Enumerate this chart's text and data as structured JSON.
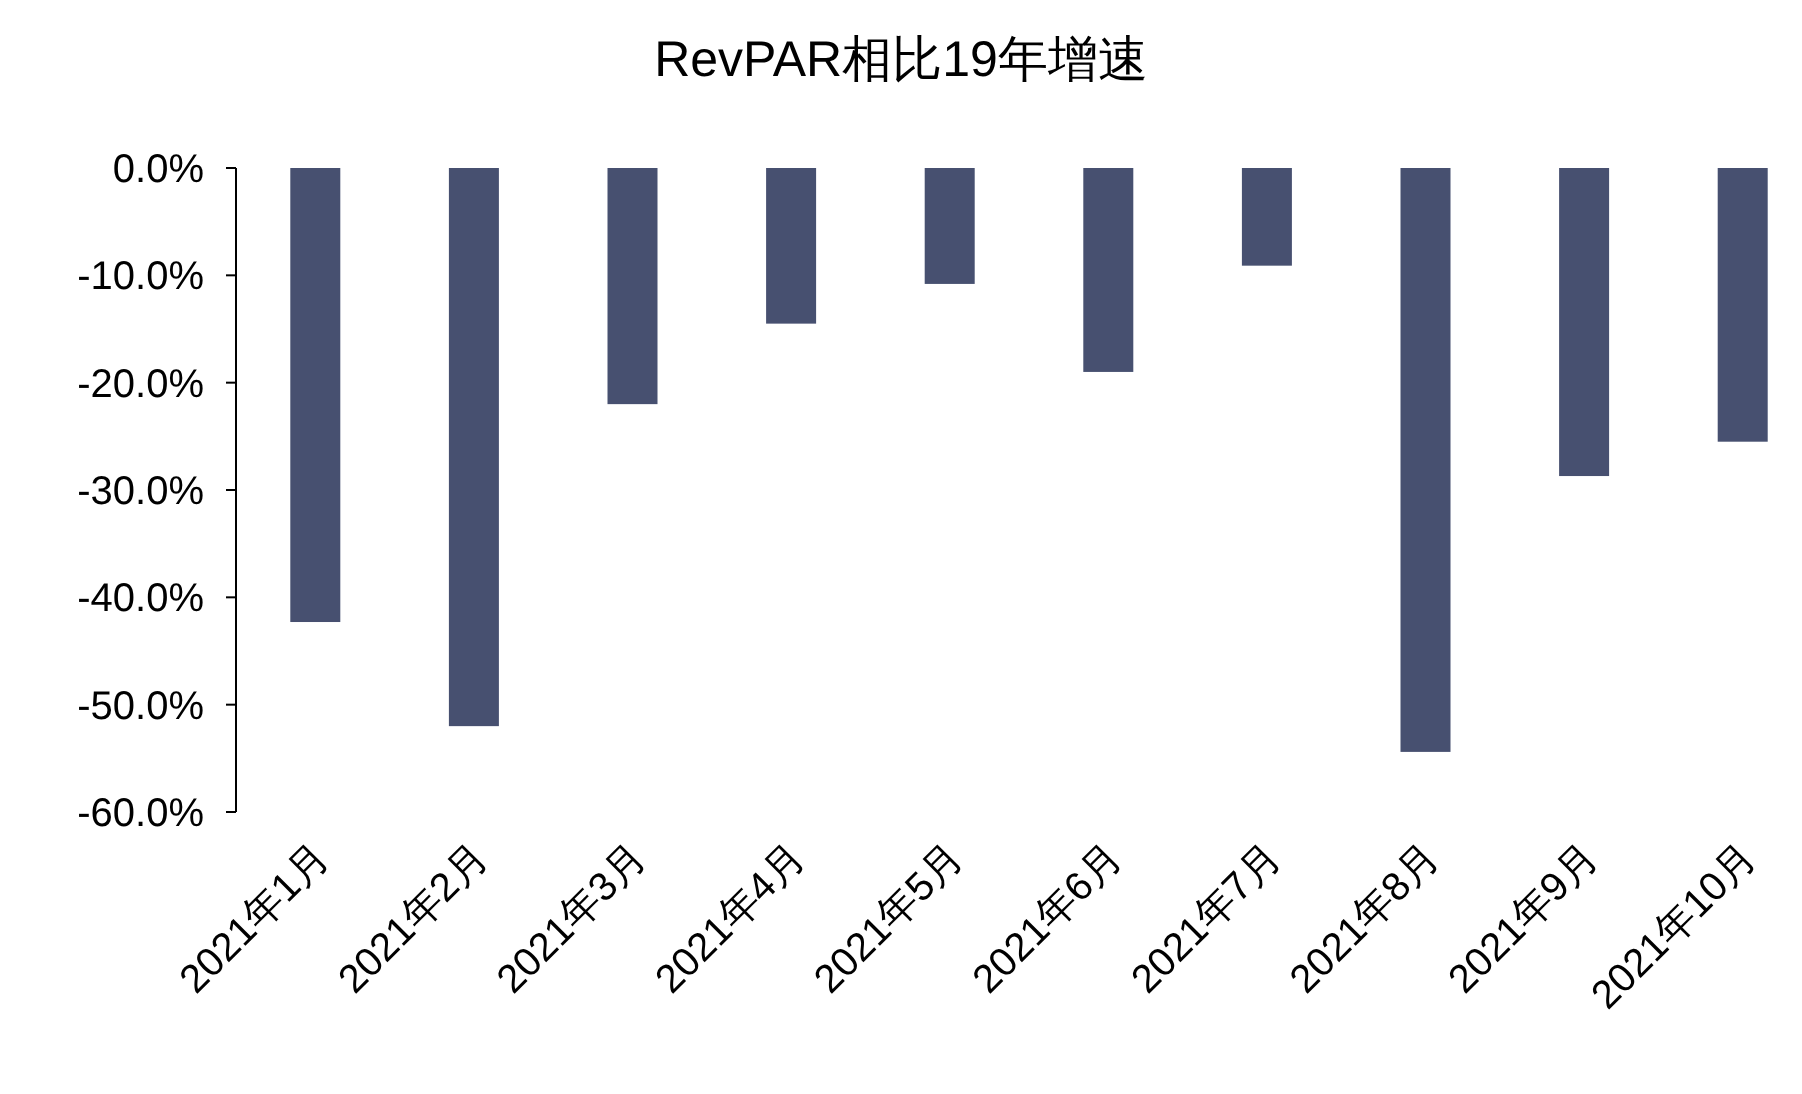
{
  "chart_data": {
    "type": "bar",
    "title": "RevPAR相比19年增速",
    "categories": [
      "2021年1月",
      "2021年2月",
      "2021年3月",
      "2021年4月",
      "2021年5月",
      "2021年6月",
      "2021年7月",
      "2021年8月",
      "2021年9月",
      "2021年10月"
    ],
    "values": [
      -42.3,
      -52.0,
      -22.0,
      -14.5,
      -10.8,
      -19.0,
      -9.1,
      -54.4,
      -28.7,
      -25.5
    ],
    "color": "#475070",
    "ylim": [
      -60,
      0
    ],
    "yticks": [
      {
        "value": 0,
        "label": "0.0%"
      },
      {
        "value": -10,
        "label": "-10.0%"
      },
      {
        "value": -20,
        "label": "-20.0%"
      },
      {
        "value": -30,
        "label": "-30.0%"
      },
      {
        "value": -40,
        "label": "-40.0%"
      },
      {
        "value": -50,
        "label": "-50.0%"
      },
      {
        "value": -60,
        "label": "-60.0%"
      }
    ],
    "grid": false
  }
}
